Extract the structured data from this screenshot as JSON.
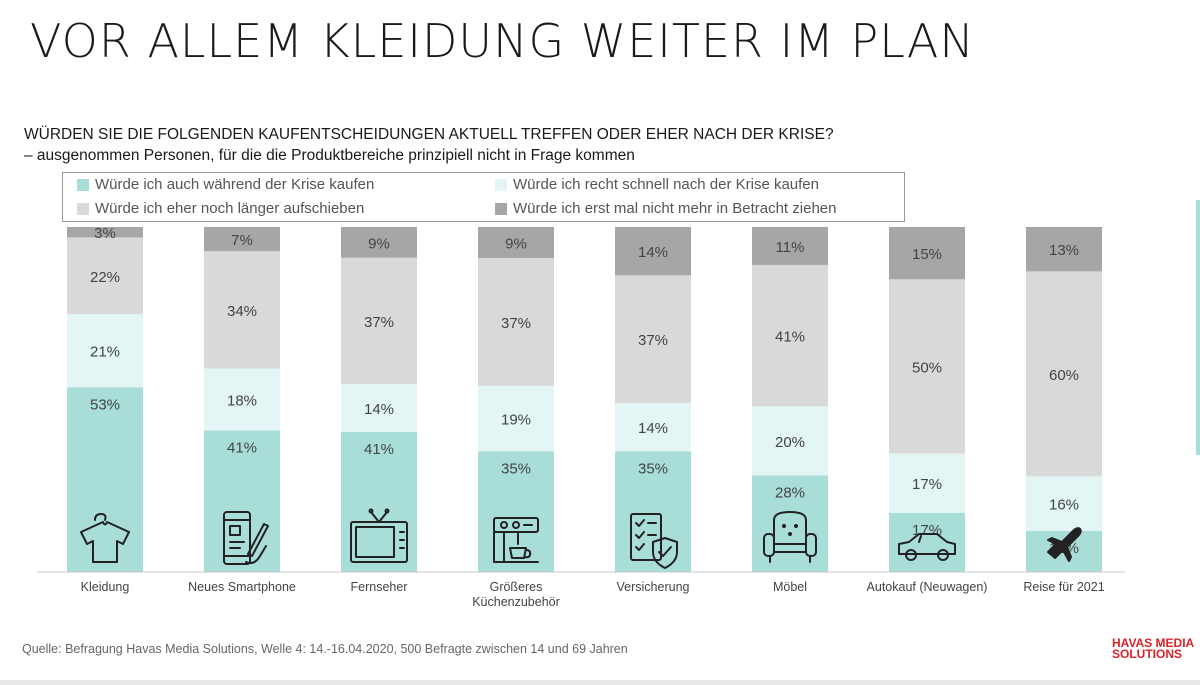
{
  "title": "VOR ALLEM KLEIDUNG WEITER IM PLAN",
  "question": "WÜRDEN SIE DIE FOLGENDEN KAUFENTSCHEIDUNGEN AKTUELL TREFFEN ODER EHER NACH DER KRISE?",
  "subquestion": "– ausgenommen Personen, für die die Produktbereiche prinzipiell nicht in Frage kommen",
  "source": "Quelle: Befragung Havas Media Solutions, Welle 4: 14.-16.04.2020, 500 Befragte zwischen 14 und 69 Jahren",
  "logo": {
    "line1": "HAVAS MEDIA",
    "line2": "SOLUTIONS",
    "color": "#d9222a"
  },
  "chart_data": {
    "type": "bar",
    "stacked": true,
    "categories": [
      "Kleidung",
      "Neues Smartphone",
      "Fernseher",
      "Größeres Küchenzubehör",
      "Versicherung",
      "Möbel",
      "Autokauf (Neuwagen)",
      "Reise für 2021"
    ],
    "category_icons": [
      "shirt-icon",
      "smartphone-icon",
      "tv-icon",
      "coffee-machine-icon",
      "insurance-icon",
      "armchair-icon",
      "car-icon",
      "airplane-icon"
    ],
    "series": [
      {
        "name": "Würde ich auch während der Krise kaufen",
        "color": "#a8ddd8",
        "values": [
          53,
          41,
          41,
          35,
          35,
          28,
          17,
          12
        ]
      },
      {
        "name": "Würde ich recht schnell nach der Krise kaufen",
        "color": "#e3f5f4",
        "values": [
          21,
          18,
          14,
          19,
          14,
          20,
          17,
          16
        ]
      },
      {
        "name": "Würde ich eher noch länger aufschieben",
        "color": "#d9d9d9",
        "values": [
          22,
          34,
          37,
          37,
          37,
          41,
          50,
          60
        ]
      },
      {
        "name": "Würde ich erst mal nicht mehr in Betracht ziehen",
        "color": "#a6a6a6",
        "values": [
          3,
          7,
          9,
          9,
          14,
          11,
          15,
          13
        ]
      }
    ],
    "value_suffix": "%",
    "ylim": [
      0,
      100
    ],
    "legend_position": "top",
    "grid": false
  }
}
